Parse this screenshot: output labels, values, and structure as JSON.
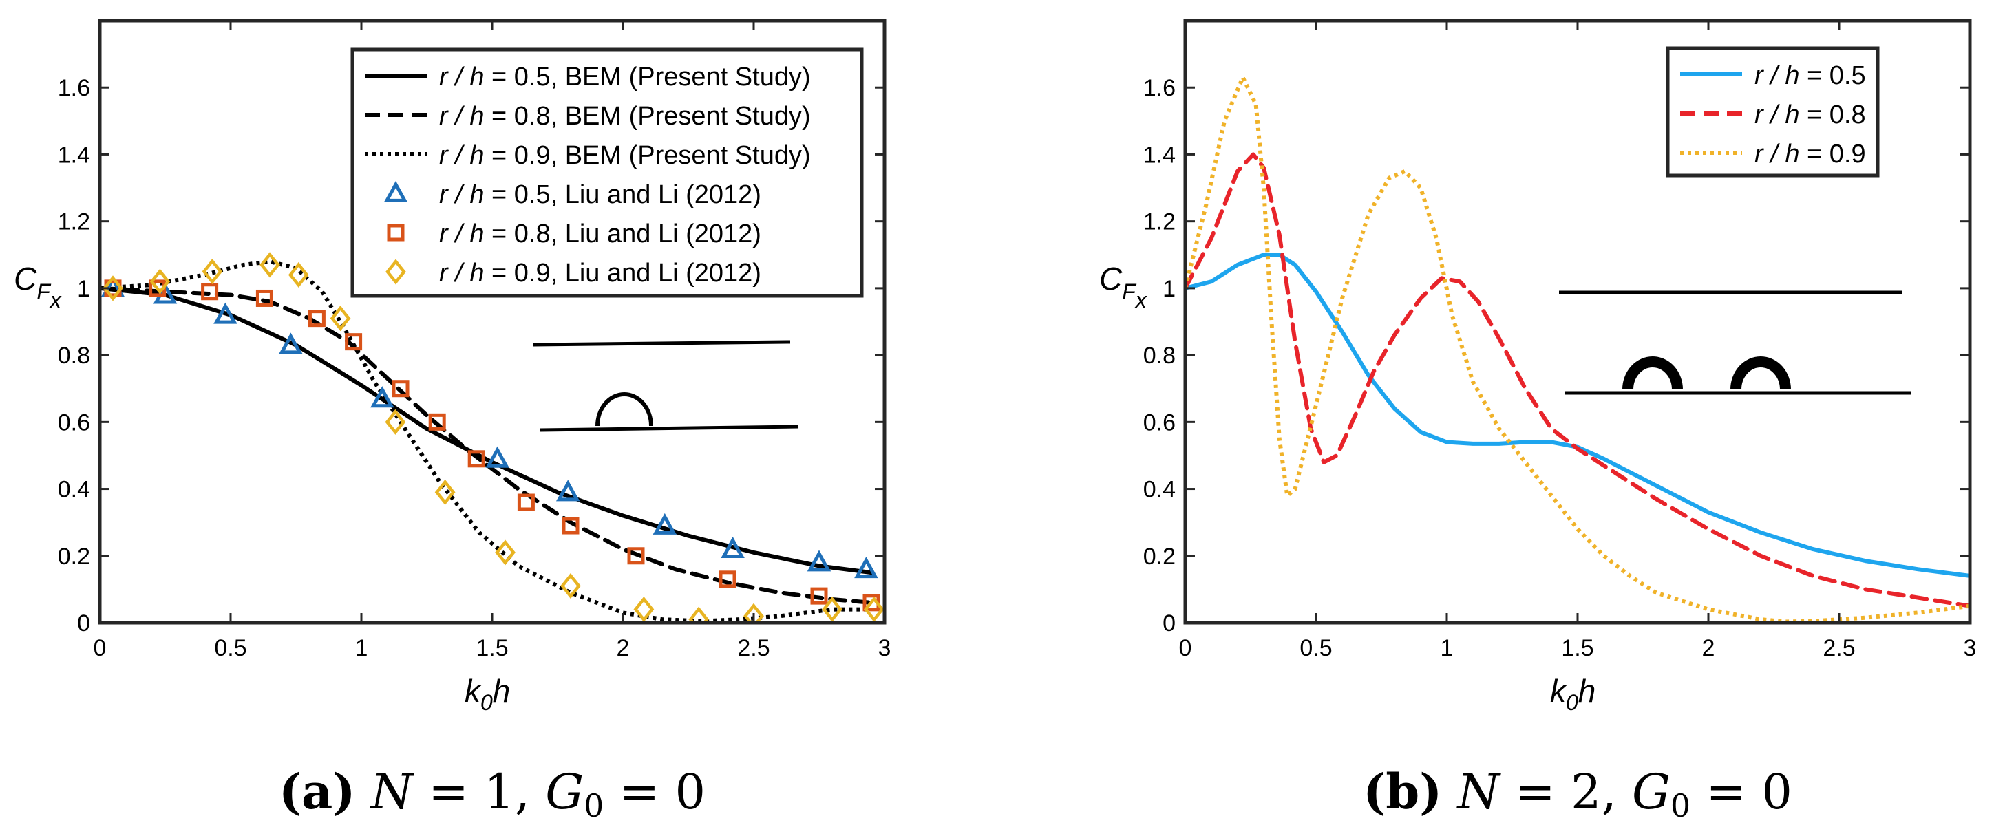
{
  "chart_data": [
    {
      "type": "line",
      "panel_caption": {
        "label": "(a)",
        "text": " N = 1, G",
        "sub": "0",
        "tail": " = 0"
      },
      "xlabel": {
        "main": "k",
        "sub": "0",
        "tail": "h"
      },
      "ylabel": {
        "main": "C",
        "sub1": "F",
        "sub2": "x"
      },
      "xlim": [
        0,
        3
      ],
      "ylim": [
        0,
        1.8
      ],
      "xticks": [
        0,
        0.5,
        1,
        1.5,
        2,
        2.5,
        3
      ],
      "xticklabels": [
        "0",
        "0.5",
        "1",
        "1.5",
        "2",
        "2.5",
        "3"
      ],
      "yticks": [
        0,
        0.2,
        0.4,
        0.6,
        0.8,
        1,
        1.2,
        1.4,
        1.6
      ],
      "yticklabels": [
        "0",
        "0.2",
        "0.4",
        "0.6",
        "0.8",
        "1",
        "1.2",
        "1.4",
        "1.6"
      ],
      "legend_position": "top-right",
      "series": [
        {
          "name": "r / h = 0.5, BEM (Present Study)",
          "style": "solid",
          "color": "#000000",
          "x": [
            0,
            0.25,
            0.5,
            0.75,
            1.0,
            1.25,
            1.5,
            1.75,
            2.0,
            2.25,
            2.5,
            2.75,
            2.95
          ],
          "y": [
            1.0,
            0.98,
            0.92,
            0.83,
            0.71,
            0.58,
            0.48,
            0.39,
            0.32,
            0.26,
            0.21,
            0.17,
            0.15
          ]
        },
        {
          "name": "r / h = 0.8, BEM (Present Study)",
          "style": "dashed",
          "color": "#000000",
          "x": [
            0,
            0.25,
            0.5,
            0.65,
            0.8,
            0.95,
            1.1,
            1.25,
            1.4,
            1.6,
            1.8,
            2.0,
            2.2,
            2.4,
            2.6,
            2.8,
            2.95
          ],
          "y": [
            1.0,
            0.99,
            0.98,
            0.96,
            0.91,
            0.84,
            0.73,
            0.62,
            0.52,
            0.4,
            0.3,
            0.22,
            0.16,
            0.12,
            0.09,
            0.07,
            0.06
          ]
        },
        {
          "name": "r / h = 0.9, BEM (Present Study)",
          "style": "dotted",
          "color": "#000000",
          "x": [
            0,
            0.2,
            0.4,
            0.55,
            0.65,
            0.75,
            0.85,
            0.95,
            1.05,
            1.15,
            1.3,
            1.45,
            1.6,
            1.8,
            2.0,
            2.15,
            2.3,
            2.45,
            2.6,
            2.8,
            2.95
          ],
          "y": [
            1.0,
            1.01,
            1.04,
            1.07,
            1.08,
            1.06,
            0.99,
            0.86,
            0.72,
            0.6,
            0.42,
            0.27,
            0.17,
            0.09,
            0.03,
            0.01,
            0.005,
            0.01,
            0.02,
            0.04,
            0.04
          ]
        },
        {
          "name": "r / h = 0.5, Liu and Li (2012)",
          "style": "marker",
          "marker": "triangle",
          "color": "#1f6fb8",
          "x": [
            0.05,
            0.25,
            0.48,
            0.73,
            1.08,
            1.52,
            1.79,
            2.16,
            2.42,
            2.75,
            2.93
          ],
          "y": [
            1.0,
            0.98,
            0.92,
            0.83,
            0.67,
            0.49,
            0.39,
            0.29,
            0.22,
            0.18,
            0.16
          ]
        },
        {
          "name": "r / h = 0.8, Liu and Li (2012)",
          "style": "marker",
          "marker": "square",
          "color": "#d95319",
          "x": [
            0.05,
            0.22,
            0.42,
            0.63,
            0.83,
            0.97,
            1.15,
            1.29,
            1.44,
            1.63,
            1.8,
            2.05,
            2.4,
            2.75,
            2.95
          ],
          "y": [
            1.0,
            1.0,
            0.99,
            0.97,
            0.91,
            0.84,
            0.7,
            0.6,
            0.49,
            0.36,
            0.29,
            0.2,
            0.13,
            0.08,
            0.06
          ]
        },
        {
          "name": "r / h = 0.9, Liu and Li (2012)",
          "style": "marker",
          "marker": "diamond",
          "color": "#e8b422",
          "x": [
            0.05,
            0.23,
            0.43,
            0.65,
            0.76,
            0.92,
            1.13,
            1.32,
            1.55,
            1.8,
            2.08,
            2.29,
            2.5,
            2.8,
            2.96
          ],
          "y": [
            1.0,
            1.02,
            1.05,
            1.07,
            1.04,
            0.91,
            0.6,
            0.39,
            0.21,
            0.11,
            0.04,
            0.01,
            0.02,
            0.04,
            0.04
          ]
        }
      ]
    },
    {
      "type": "line",
      "panel_caption": {
        "label": "(b)",
        "text": " N = 2, G",
        "sub": "0",
        "tail": " = 0"
      },
      "xlabel": {
        "main": "k",
        "sub": "0",
        "tail": "h"
      },
      "ylabel": {
        "main": "C",
        "sub1": "F",
        "sub2": "x"
      },
      "xlim": [
        0,
        3
      ],
      "ylim": [
        0,
        1.8
      ],
      "xticks": [
        0,
        0.5,
        1,
        1.5,
        2,
        2.5,
        3
      ],
      "xticklabels": [
        "0",
        "0.5",
        "1",
        "1.5",
        "2",
        "2.5",
        "3"
      ],
      "yticks": [
        0,
        0.2,
        0.4,
        0.6,
        0.8,
        1,
        1.2,
        1.4,
        1.6
      ],
      "yticklabels": [
        "0",
        "0.2",
        "0.4",
        "0.6",
        "0.8",
        "1",
        "1.2",
        "1.4",
        "1.6"
      ],
      "legend_position": "top-right",
      "series": [
        {
          "name": "r / h = 0.5",
          "style": "solid",
          "color": "#1ea5ee",
          "x": [
            0,
            0.1,
            0.2,
            0.3,
            0.36,
            0.42,
            0.5,
            0.6,
            0.7,
            0.8,
            0.9,
            1.0,
            1.1,
            1.2,
            1.3,
            1.4,
            1.5,
            1.6,
            1.7,
            1.8,
            2.0,
            2.2,
            2.4,
            2.6,
            2.8,
            3.0
          ],
          "y": [
            1.0,
            1.02,
            1.07,
            1.1,
            1.1,
            1.07,
            0.99,
            0.87,
            0.74,
            0.64,
            0.57,
            0.54,
            0.535,
            0.535,
            0.54,
            0.54,
            0.525,
            0.49,
            0.45,
            0.41,
            0.33,
            0.27,
            0.22,
            0.185,
            0.16,
            0.14
          ]
        },
        {
          "name": "r / h = 0.8",
          "style": "dashed",
          "color": "#e8242a",
          "x": [
            0,
            0.1,
            0.2,
            0.26,
            0.3,
            0.36,
            0.42,
            0.48,
            0.53,
            0.58,
            0.65,
            0.72,
            0.8,
            0.9,
            0.98,
            1.05,
            1.12,
            1.2,
            1.3,
            1.4,
            1.5,
            1.6,
            1.7,
            1.8,
            2.0,
            2.2,
            2.4,
            2.6,
            2.8,
            3.0
          ],
          "y": [
            1.0,
            1.15,
            1.35,
            1.4,
            1.36,
            1.16,
            0.84,
            0.58,
            0.48,
            0.5,
            0.62,
            0.75,
            0.86,
            0.97,
            1.03,
            1.02,
            0.96,
            0.85,
            0.7,
            0.58,
            0.52,
            0.47,
            0.42,
            0.37,
            0.28,
            0.2,
            0.14,
            0.1,
            0.075,
            0.05
          ]
        },
        {
          "name": "r / h = 0.9",
          "style": "dotted",
          "color": "#f0b229",
          "x": [
            0,
            0.08,
            0.15,
            0.22,
            0.27,
            0.3,
            0.33,
            0.36,
            0.39,
            0.42,
            0.5,
            0.6,
            0.7,
            0.78,
            0.84,
            0.9,
            0.96,
            1.02,
            1.1,
            1.2,
            1.3,
            1.4,
            1.5,
            1.6,
            1.7,
            1.8,
            2.0,
            2.2,
            2.3,
            2.4,
            2.6,
            2.8,
            3.0
          ],
          "y": [
            1.0,
            1.25,
            1.5,
            1.63,
            1.55,
            1.3,
            0.9,
            0.55,
            0.38,
            0.4,
            0.65,
            0.97,
            1.22,
            1.33,
            1.35,
            1.3,
            1.15,
            0.92,
            0.72,
            0.58,
            0.48,
            0.38,
            0.28,
            0.2,
            0.14,
            0.09,
            0.04,
            0.01,
            0.003,
            0.005,
            0.015,
            0.03,
            0.05
          ]
        }
      ]
    }
  ]
}
